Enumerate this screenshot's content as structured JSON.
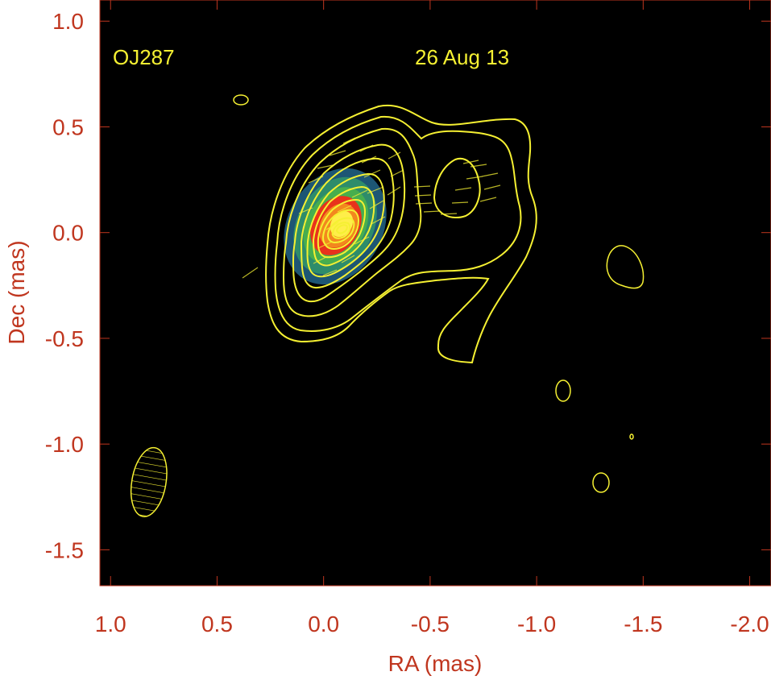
{
  "chart_data": {
    "type": "heatmap",
    "title": "",
    "source_label": "OJ287",
    "date_label": "26 Aug 13",
    "xlabel": "RA (mas)",
    "ylabel": "Dec (mas)",
    "xlim": [
      1.05,
      -2.1
    ],
    "ylim": [
      -1.67,
      1.1
    ],
    "xticks": [
      1.0,
      0.5,
      0.0,
      -0.5,
      -1.0,
      -1.5,
      -2.0
    ],
    "yticks": [
      1.0,
      0.5,
      0.0,
      -0.5,
      -1.0,
      -1.5
    ],
    "xtick_labels": [
      "1.0",
      "0.5",
      "0.0",
      "-0.5",
      "-1.0",
      "-1.5",
      "-2.0"
    ],
    "ytick_labels": [
      "1.0",
      "0.5",
      "0.0",
      "-0.5",
      "-1.0",
      "-1.5"
    ],
    "grid": false,
    "legend": "none",
    "colors": {
      "axis": "#c0361f",
      "background": "#000000",
      "contour": "#f5f032",
      "label_text": "#f5f032",
      "colormap": [
        "#1f5b7a",
        "#2f8f6a",
        "#49b04d",
        "#f2c22e",
        "#f48a1e",
        "#ee2d1a",
        "#fff04a"
      ]
    },
    "core": {
      "ra": -0.02,
      "dec": 0.02,
      "peak_ra": -0.1,
      "peak_dec": 0.05
    },
    "beam": {
      "ra": 0.82,
      "dec": -1.18,
      "major_mas": 0.33,
      "minor_mas": 0.16,
      "pa_deg": 10
    },
    "contour_count": 12
  }
}
